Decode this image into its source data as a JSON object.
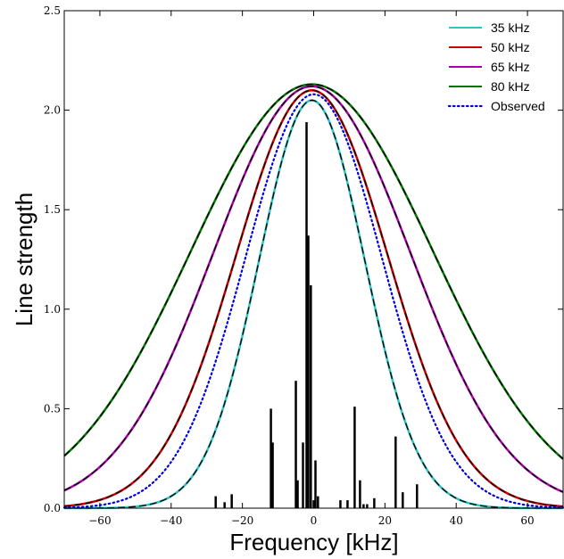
{
  "chart_data": {
    "type": "line",
    "title": "",
    "xlabel": "Frequency [kHz]",
    "ylabel": "Line strength",
    "xlim": [
      -70,
      70
    ],
    "ylim": [
      0,
      2.5
    ],
    "x_ticks": [
      -60,
      -40,
      -20,
      0,
      20,
      40,
      60
    ],
    "x_tick_labels": [
      "−60",
      "−40",
      "−20",
      "0",
      "20",
      "40",
      "60"
    ],
    "y_ticks": [
      0,
      0.5,
      1,
      1.5,
      2,
      2.5
    ],
    "y_tick_labels": [
      "0.0",
      "0.5",
      "1.0",
      "1.5",
      "2.0",
      "2.5"
    ],
    "grid": false,
    "legend_position": "top-right",
    "series": [
      {
        "name": "35 kHz",
        "color": "#2ec4c4",
        "style": "solid",
        "peak": 2.05,
        "center": -0.5,
        "fwhm": 35
      },
      {
        "name": "50 kHz",
        "color": "#cc0000",
        "style": "solid",
        "peak": 2.1,
        "center": -0.5,
        "fwhm": 50
      },
      {
        "name": "65 kHz",
        "color": "#aa00aa",
        "style": "solid",
        "peak": 2.12,
        "center": -0.5,
        "fwhm": 65
      },
      {
        "name": "80 kHz",
        "color": "#007700",
        "style": "solid",
        "peak": 2.13,
        "center": -0.5,
        "fwhm": 80
      },
      {
        "name": "Observed",
        "color": "#0000dd",
        "style": "dotted",
        "peak": 2.08,
        "center": 0,
        "fwhm": 45
      }
    ],
    "sticks": {
      "color": "#000000",
      "x": [
        -27.5,
        -25.0,
        -23.0,
        -12.0,
        -11.5,
        -5.0,
        -4.5,
        -3.0,
        -2.0,
        -1.5,
        -0.8,
        0.0,
        0.5,
        1.2,
        7.5,
        9.5,
        11.5,
        13.0,
        14.0,
        15.0,
        17.0,
        23.0,
        25.0,
        29.0
      ],
      "y": [
        0.06,
        0.03,
        0.07,
        0.5,
        0.33,
        0.64,
        0.14,
        0.33,
        1.94,
        1.37,
        1.12,
        0.04,
        0.24,
        0.06,
        0.04,
        0.04,
        0.51,
        0.14,
        0.02,
        0.02,
        0.05,
        0.36,
        0.08,
        0.12
      ]
    }
  }
}
